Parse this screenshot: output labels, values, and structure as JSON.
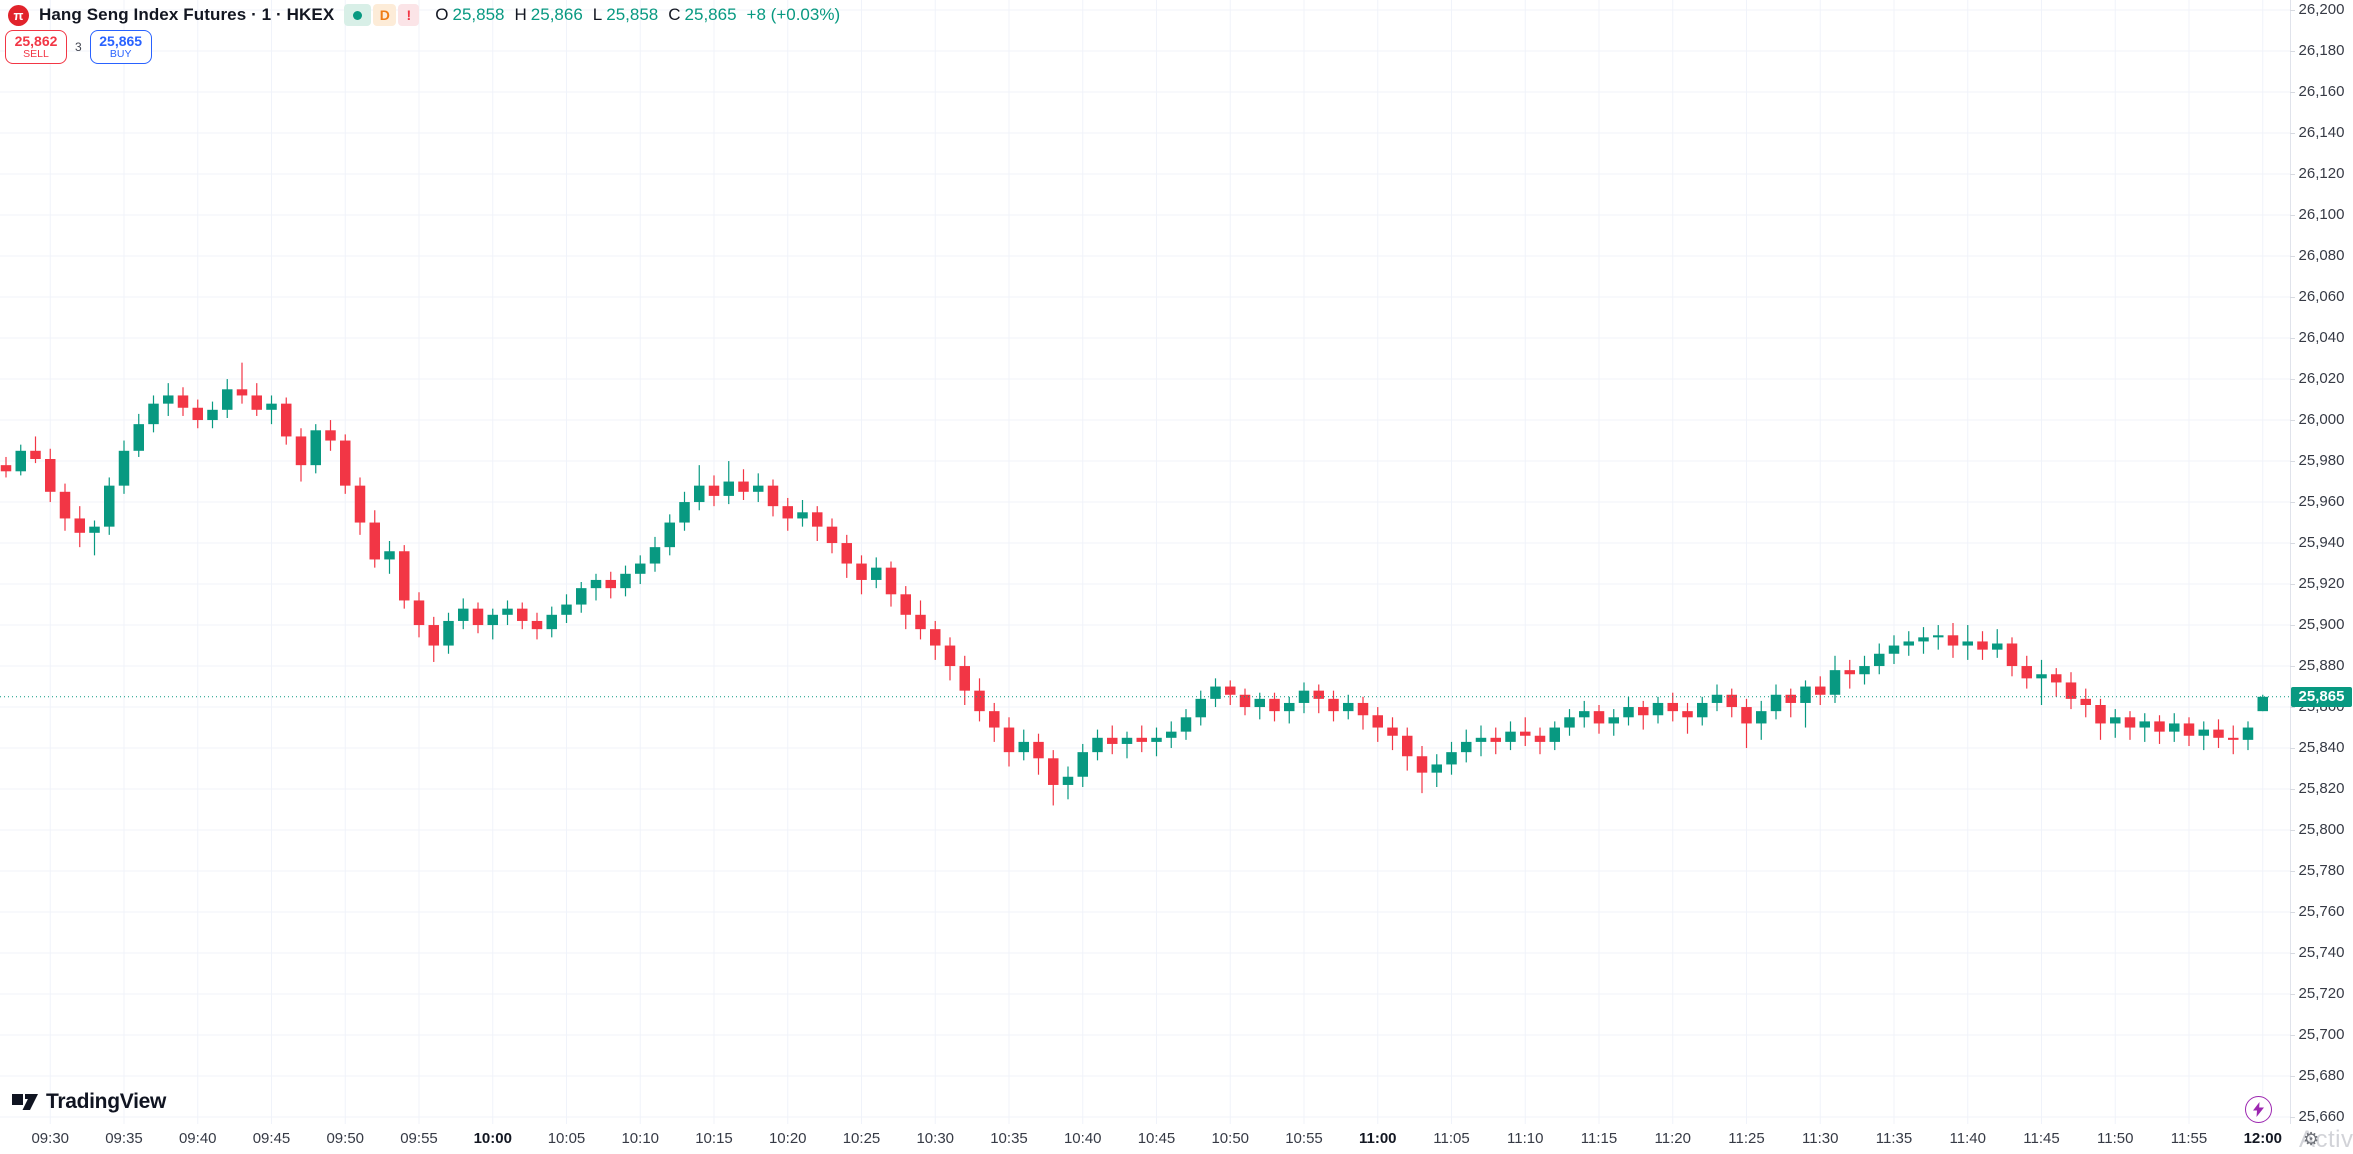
{
  "header": {
    "symbol_title": "Hang Seng Index Futures · 1 · HKEX",
    "logo_glyph": "π",
    "badges": {
      "d_label": "D",
      "alert_label": "!"
    },
    "ohlc": {
      "open_label": "O",
      "open": "25,858",
      "high_label": "H",
      "high": "25,866",
      "low_label": "L",
      "low": "25,858",
      "close_label": "C",
      "close": "25,865",
      "change": "+8 (+0.03%)"
    },
    "sell_button": {
      "price": "25,862",
      "label": "SELL"
    },
    "spread": "3",
    "buy_button": {
      "price": "25,865",
      "label": "BUY"
    }
  },
  "branding": {
    "logo_text": "TradingView"
  },
  "price_axis": {
    "current_price_label": "25,865"
  },
  "bottom_right": {
    "watermark_text": "Activa",
    "gear_glyph": "⚙"
  },
  "chart_data": {
    "type": "candlestick",
    "title": "Hang Seng Index Futures",
    "interval_minutes": 1,
    "exchange": "HKEX",
    "last_price": 25865,
    "colors": {
      "up": "#089981",
      "down": "#f23645",
      "grid": "#f0f3fa"
    },
    "y_axis": {
      "visible_min": 25655,
      "visible_max": 26205,
      "tick_step": 20,
      "ticks": [
        26200,
        26180,
        26160,
        26140,
        26120,
        26100,
        26080,
        26060,
        26040,
        26020,
        26000,
        25980,
        25960,
        25940,
        25920,
        25900,
        25880,
        25860,
        25840,
        25820,
        25800,
        25780,
        25760,
        25740,
        25720,
        25700,
        25680,
        25660
      ]
    },
    "x_axis": {
      "ticks": [
        {
          "label": "09:30",
          "bold": false
        },
        {
          "label": "09:35",
          "bold": false
        },
        {
          "label": "09:40",
          "bold": false
        },
        {
          "label": "09:45",
          "bold": false
        },
        {
          "label": "09:50",
          "bold": false
        },
        {
          "label": "09:55",
          "bold": false
        },
        {
          "label": "10:00",
          "bold": true
        },
        {
          "label": "10:05",
          "bold": false
        },
        {
          "label": "10:10",
          "bold": false
        },
        {
          "label": "10:15",
          "bold": false
        },
        {
          "label": "10:20",
          "bold": false
        },
        {
          "label": "10:25",
          "bold": false
        },
        {
          "label": "10:30",
          "bold": false
        },
        {
          "label": "10:35",
          "bold": false
        },
        {
          "label": "10:40",
          "bold": false
        },
        {
          "label": "10:45",
          "bold": false
        },
        {
          "label": "10:50",
          "bold": false
        },
        {
          "label": "10:55",
          "bold": false
        },
        {
          "label": "11:00",
          "bold": true
        },
        {
          "label": "11:05",
          "bold": false
        },
        {
          "label": "11:10",
          "bold": false
        },
        {
          "label": "11:15",
          "bold": false
        },
        {
          "label": "11:20",
          "bold": false
        },
        {
          "label": "11:25",
          "bold": false
        },
        {
          "label": "11:30",
          "bold": false
        },
        {
          "label": "11:35",
          "bold": false
        },
        {
          "label": "11:40",
          "bold": false
        },
        {
          "label": "11:45",
          "bold": false
        },
        {
          "label": "11:50",
          "bold": false
        },
        {
          "label": "11:55",
          "bold": false
        },
        {
          "label": "12:00",
          "bold": true
        }
      ]
    },
    "candles": [
      [
        "09:27",
        25978,
        25982,
        25972,
        25975
      ],
      [
        "09:28",
        25975,
        25988,
        25973,
        25985
      ],
      [
        "09:29",
        25985,
        25992,
        25979,
        25981
      ],
      [
        "09:30",
        25981,
        25986,
        25960,
        25965
      ],
      [
        "09:31",
        25965,
        25969,
        25946,
        25952
      ],
      [
        "09:32",
        25952,
        25958,
        25938,
        25945
      ],
      [
        "09:33",
        25945,
        25951,
        25934,
        25948
      ],
      [
        "09:34",
        25948,
        25972,
        25944,
        25968
      ],
      [
        "09:35",
        25968,
        25990,
        25964,
        25985
      ],
      [
        "09:36",
        25985,
        26003,
        25982,
        25998
      ],
      [
        "09:37",
        25998,
        26012,
        25994,
        26008
      ],
      [
        "09:38",
        26008,
        26018,
        26002,
        26012
      ],
      [
        "09:39",
        26012,
        26016,
        26002,
        26006
      ],
      [
        "09:40",
        26006,
        26010,
        25996,
        26000
      ],
      [
        "09:41",
        26000,
        26009,
        25996,
        26005
      ],
      [
        "09:42",
        26005,
        26020,
        26001,
        26015
      ],
      [
        "09:43",
        26015,
        26028,
        26008,
        26012
      ],
      [
        "09:44",
        26012,
        26018,
        26002,
        26005
      ],
      [
        "09:45",
        26005,
        26012,
        25998,
        26008
      ],
      [
        "09:46",
        26008,
        26011,
        25988,
        25992
      ],
      [
        "09:47",
        25992,
        25996,
        25970,
        25978
      ],
      [
        "09:48",
        25978,
        25998,
        25974,
        25995
      ],
      [
        "09:49",
        25995,
        26000,
        25985,
        25990
      ],
      [
        "09:50",
        25990,
        25993,
        25964,
        25968
      ],
      [
        "09:51",
        25968,
        25972,
        25944,
        25950
      ],
      [
        "09:52",
        25950,
        25956,
        25928,
        25932
      ],
      [
        "09:53",
        25932,
        25941,
        25925,
        25936
      ],
      [
        "09:54",
        25936,
        25939,
        25908,
        25912
      ],
      [
        "09:55",
        25912,
        25916,
        25894,
        25900
      ],
      [
        "09:56",
        25900,
        25904,
        25882,
        25890
      ],
      [
        "09:57",
        25890,
        25906,
        25886,
        25902
      ],
      [
        "09:58",
        25902,
        25913,
        25898,
        25908
      ],
      [
        "09:59",
        25908,
        25911,
        25896,
        25900
      ],
      [
        "10:00",
        25900,
        25908,
        25893,
        25905
      ],
      [
        "10:01",
        25905,
        25912,
        25900,
        25908
      ],
      [
        "10:02",
        25908,
        25911,
        25898,
        25902
      ],
      [
        "10:03",
        25902,
        25906,
        25893,
        25898
      ],
      [
        "10:04",
        25898,
        25909,
        25894,
        25905
      ],
      [
        "10:05",
        25905,
        25915,
        25901,
        25910
      ],
      [
        "10:06",
        25910,
        25921,
        25906,
        25918
      ],
      [
        "10:07",
        25918,
        25925,
        25912,
        25922
      ],
      [
        "10:08",
        25922,
        25926,
        25913,
        25918
      ],
      [
        "10:09",
        25918,
        25929,
        25914,
        25925
      ],
      [
        "10:10",
        25925,
        25934,
        25920,
        25930
      ],
      [
        "10:11",
        25930,
        25943,
        25926,
        25938
      ],
      [
        "10:12",
        25938,
        25954,
        25934,
        25950
      ],
      [
        "10:13",
        25950,
        25965,
        25946,
        25960
      ],
      [
        "10:14",
        25960,
        25978,
        25956,
        25968
      ],
      [
        "10:15",
        25968,
        25973,
        25958,
        25963
      ],
      [
        "10:16",
        25963,
        25980,
        25959,
        25970
      ],
      [
        "10:17",
        25970,
        25976,
        25961,
        25965
      ],
      [
        "10:18",
        25965,
        25974,
        25960,
        25968
      ],
      [
        "10:19",
        25968,
        25971,
        25953,
        25958
      ],
      [
        "10:20",
        25958,
        25962,
        25946,
        25952
      ],
      [
        "10:21",
        25952,
        25961,
        25948,
        25955
      ],
      [
        "10:22",
        25955,
        25958,
        25941,
        25948
      ],
      [
        "10:23",
        25948,
        25952,
        25935,
        25940
      ],
      [
        "10:24",
        25940,
        25944,
        25923,
        25930
      ],
      [
        "10:25",
        25930,
        25934,
        25915,
        25922
      ],
      [
        "10:26",
        25922,
        25933,
        25918,
        25928
      ],
      [
        "10:27",
        25928,
        25931,
        25909,
        25915
      ],
      [
        "10:28",
        25915,
        25919,
        25898,
        25905
      ],
      [
        "10:29",
        25905,
        25912,
        25893,
        25898
      ],
      [
        "10:30",
        25898,
        25902,
        25883,
        25890
      ],
      [
        "10:31",
        25890,
        25894,
        25873,
        25880
      ],
      [
        "10:32",
        25880,
        25885,
        25861,
        25868
      ],
      [
        "10:33",
        25868,
        25874,
        25853,
        25858
      ],
      [
        "10:34",
        25858,
        25862,
        25843,
        25850
      ],
      [
        "10:35",
        25850,
        25855,
        25831,
        25838
      ],
      [
        "10:36",
        25838,
        25849,
        25834,
        25843
      ],
      [
        "10:37",
        25843,
        25847,
        25827,
        25835
      ],
      [
        "10:38",
        25835,
        25839,
        25812,
        25822
      ],
      [
        "10:39",
        25822,
        25831,
        25815,
        25826
      ],
      [
        "10:40",
        25826,
        25842,
        25821,
        25838
      ],
      [
        "10:41",
        25838,
        25849,
        25834,
        25845
      ],
      [
        "10:42",
        25845,
        25851,
        25837,
        25842
      ],
      [
        "10:43",
        25842,
        25848,
        25835,
        25845
      ],
      [
        "10:44",
        25845,
        25851,
        25838,
        25843
      ],
      [
        "10:45",
        25843,
        25850,
        25836,
        25845
      ],
      [
        "10:46",
        25845,
        25853,
        25840,
        25848
      ],
      [
        "10:47",
        25848,
        25859,
        25844,
        25855
      ],
      [
        "10:48",
        25855,
        25868,
        25851,
        25864
      ],
      [
        "10:49",
        25864,
        25874,
        25860,
        25870
      ],
      [
        "10:50",
        25870,
        25873,
        25861,
        25866
      ],
      [
        "10:51",
        25866,
        25869,
        25856,
        25860
      ],
      [
        "10:52",
        25860,
        25867,
        25854,
        25864
      ],
      [
        "10:53",
        25864,
        25867,
        25853,
        25858
      ],
      [
        "10:54",
        25858,
        25865,
        25852,
        25862
      ],
      [
        "10:55",
        25862,
        25872,
        25857,
        25868
      ],
      [
        "10:56",
        25868,
        25871,
        25857,
        25864
      ],
      [
        "10:57",
        25864,
        25868,
        25853,
        25858
      ],
      [
        "10:58",
        25858,
        25866,
        25854,
        25862
      ],
      [
        "10:59",
        25862,
        25865,
        25849,
        25856
      ],
      [
        "11:00",
        25856,
        25860,
        25843,
        25850
      ],
      [
        "11:01",
        25850,
        25855,
        25839,
        25846
      ],
      [
        "11:02",
        25846,
        25850,
        25829,
        25836
      ],
      [
        "11:03",
        25836,
        25841,
        25818,
        25828
      ],
      [
        "11:04",
        25828,
        25837,
        25821,
        25832
      ],
      [
        "11:05",
        25832,
        25843,
        25827,
        25838
      ],
      [
        "11:06",
        25838,
        25849,
        25833,
        25843
      ],
      [
        "11:07",
        25843,
        25851,
        25836,
        25845
      ],
      [
        "11:08",
        25845,
        25850,
        25837,
        25843
      ],
      [
        "11:09",
        25843,
        25853,
        25839,
        25848
      ],
      [
        "11:10",
        25848,
        25855,
        25841,
        25846
      ],
      [
        "11:11",
        25846,
        25850,
        25837,
        25843
      ],
      [
        "11:12",
        25843,
        25853,
        25839,
        25850
      ],
      [
        "11:13",
        25850,
        25859,
        25846,
        25855
      ],
      [
        "11:14",
        25855,
        25863,
        25850,
        25858
      ],
      [
        "11:15",
        25858,
        25861,
        25847,
        25852
      ],
      [
        "11:16",
        25852,
        25859,
        25846,
        25855
      ],
      [
        "11:17",
        25855,
        25865,
        25851,
        25860
      ],
      [
        "11:18",
        25860,
        25863,
        25849,
        25856
      ],
      [
        "11:19",
        25856,
        25865,
        25852,
        25862
      ],
      [
        "11:20",
        25862,
        25867,
        25853,
        25858
      ],
      [
        "11:21",
        25858,
        25862,
        25847,
        25855
      ],
      [
        "11:22",
        25855,
        25865,
        25851,
        25862
      ],
      [
        "11:23",
        25862,
        25871,
        25858,
        25866
      ],
      [
        "11:24",
        25866,
        25869,
        25855,
        25860
      ],
      [
        "11:25",
        25860,
        25864,
        25840,
        25852
      ],
      [
        "11:26",
        25852,
        25863,
        25844,
        25858
      ],
      [
        "11:27",
        25858,
        25871,
        25854,
        25866
      ],
      [
        "11:28",
        25866,
        25869,
        25855,
        25862
      ],
      [
        "11:29",
        25862,
        25873,
        25850,
        25870
      ],
      [
        "11:30",
        25870,
        25875,
        25861,
        25866
      ],
      [
        "11:31",
        25866,
        25885,
        25862,
        25878
      ],
      [
        "11:32",
        25878,
        25883,
        25869,
        25876
      ],
      [
        "11:33",
        25876,
        25885,
        25871,
        25880
      ],
      [
        "11:34",
        25880,
        25891,
        25876,
        25886
      ],
      [
        "11:35",
        25886,
        25895,
        25881,
        25890
      ],
      [
        "11:36",
        25890,
        25897,
        25885,
        25892
      ],
      [
        "11:37",
        25892,
        25899,
        25886,
        25894
      ],
      [
        "11:38",
        25894,
        25900,
        25888,
        25895
      ],
      [
        "11:39",
        25895,
        25901,
        25884,
        25890
      ],
      [
        "11:40",
        25890,
        25900,
        25883,
        25892
      ],
      [
        "11:41",
        25892,
        25897,
        25883,
        25888
      ],
      [
        "11:42",
        25888,
        25898,
        25884,
        25891
      ],
      [
        "11:43",
        25891,
        25894,
        25875,
        25880
      ],
      [
        "11:44",
        25880,
        25885,
        25869,
        25874
      ],
      [
        "11:45",
        25874,
        25883,
        25861,
        25876
      ],
      [
        "11:46",
        25876,
        25879,
        25865,
        25872
      ],
      [
        "11:47",
        25872,
        25877,
        25859,
        25864
      ],
      [
        "11:48",
        25864,
        25869,
        25855,
        25861
      ],
      [
        "11:49",
        25861,
        25864,
        25844,
        25852
      ],
      [
        "11:50",
        25852,
        25859,
        25845,
        25855
      ],
      [
        "11:51",
        25855,
        25858,
        25844,
        25850
      ],
      [
        "11:52",
        25850,
        25857,
        25843,
        25853
      ],
      [
        "11:53",
        25853,
        25856,
        25842,
        25848
      ],
      [
        "11:54",
        25848,
        25857,
        25843,
        25852
      ],
      [
        "11:55",
        25852,
        25855,
        25841,
        25846
      ],
      [
        "11:56",
        25846,
        25853,
        25839,
        25849
      ],
      [
        "11:57",
        25849,
        25854,
        25840,
        25845
      ],
      [
        "11:58",
        25845,
        25851,
        25837,
        25844
      ],
      [
        "11:59",
        25844,
        25853,
        25839,
        25850
      ],
      [
        "12:00",
        25858,
        25866,
        25858,
        25865
      ]
    ]
  }
}
